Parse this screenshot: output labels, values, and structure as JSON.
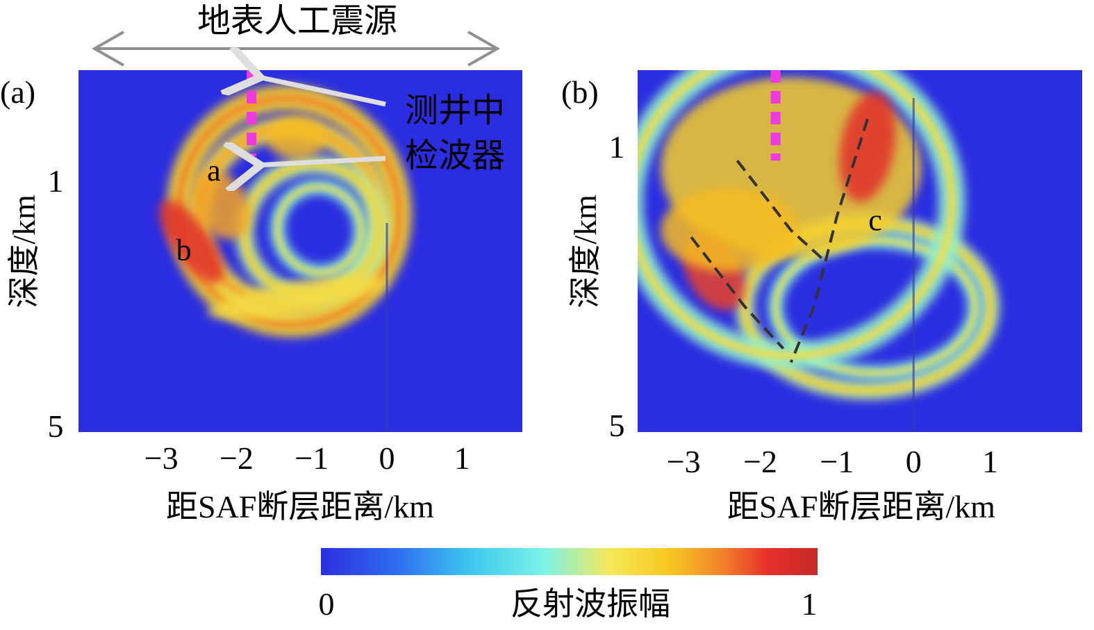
{
  "chart_data": [
    {
      "type": "heatmap",
      "panel_label": "(a)",
      "title": "",
      "xlabel": "距SAF断层距离/km",
      "ylabel": "深度/km",
      "xticks": [
        "−3",
        "−2",
        "−1",
        "0",
        "1"
      ],
      "xtick_values": [
        -3,
        -2,
        -1,
        0,
        1
      ],
      "yticks": [
        "1",
        "5"
      ],
      "ytick_values": [
        1,
        5
      ],
      "xlim": [
        -4.1,
        1.8
      ],
      "ylim": [
        -0.8,
        5.1
      ],
      "source_label": "地表人工震源",
      "receiver_label_line1": "测井中",
      "receiver_label_line2": "检波器",
      "receiver_x": -1.8,
      "receiver_depth_range": [
        -0.8,
        0.6
      ],
      "fault_line_x": 0,
      "annotations": [
        {
          "text": "a",
          "x": -2.3,
          "y": 1.0
        },
        {
          "text": "b",
          "x": -2.7,
          "y": 2.3
        }
      ],
      "arcs": [
        {
          "cx": -1.3,
          "cy": 1.5,
          "rx": 1.45,
          "ry": 1.85,
          "rot": -20,
          "level": 0.6,
          "width": 0.35
        },
        {
          "cx": -1.3,
          "cy": 1.6,
          "rx": 1.2,
          "ry": 1.45,
          "rot": -20,
          "level": 0.55,
          "width": 0.3
        },
        {
          "cx": -1.0,
          "cy": 1.8,
          "rx": 0.9,
          "ry": 1.05,
          "rot": -25,
          "level": 0.45,
          "width": 0.25
        },
        {
          "cx": -0.9,
          "cy": 1.8,
          "rx": 0.55,
          "ry": 0.7,
          "rot": -25,
          "level": 0.4,
          "width": 0.2
        }
      ],
      "blobs": [
        {
          "x": -2.6,
          "y": 2.0,
          "rx": 0.25,
          "ry": 0.8,
          "rot": -35,
          "level": 0.9
        },
        {
          "x": -2.2,
          "y": 1.4,
          "rx": 0.35,
          "ry": 0.6,
          "rot": -30,
          "level": 0.7
        },
        {
          "x": -1.2,
          "y": 0.3,
          "rx": 0.4,
          "ry": 0.35,
          "rot": 0,
          "level": 0.65
        },
        {
          "x": -1.2,
          "y": 2.9,
          "rx": 1.2,
          "ry": 0.25,
          "rot": -10,
          "level": 0.55
        }
      ]
    },
    {
      "type": "heatmap",
      "panel_label": "(b)",
      "title": "",
      "xlabel": "距SAF断层距离/km",
      "ylabel": "深度/km",
      "xticks": [
        "−3",
        "−2",
        "−1",
        "0",
        "1"
      ],
      "xtick_values": [
        -3,
        -2,
        -1,
        0,
        1
      ],
      "yticks": [
        "1",
        "5"
      ],
      "yticks_values_note": "",
      "ytick_values": [
        1,
        5
      ],
      "xlim": [
        -3.6,
        2.2
      ],
      "ylim": [
        -0.1,
        5.1
      ],
      "receiver_x": -1.8,
      "receiver_depth_range": [
        -0.1,
        1.2
      ],
      "fault_line_x": 0,
      "annotations": [
        {
          "text": "c",
          "x": -0.5,
          "y": 2.2
        }
      ],
      "dashed_lines": [
        {
          "x": [
            -2.3,
            -1.6,
            -1.2
          ],
          "y": [
            1.2,
            2.2,
            2.6
          ]
        },
        {
          "x": [
            -2.9,
            -2.2,
            -1.7
          ],
          "y": [
            2.3,
            3.3,
            3.9
          ]
        },
        {
          "x": [
            -0.6,
            -1.0,
            -1.3,
            -1.6
          ],
          "y": [
            0.6,
            2.0,
            3.3,
            4.1
          ]
        }
      ],
      "blobs": [
        {
          "x": -1.6,
          "y": 1.3,
          "rx": 1.7,
          "ry": 1.3,
          "rot": 0,
          "level": 0.6
        },
        {
          "x": -0.6,
          "y": 1.0,
          "rx": 0.35,
          "ry": 0.8,
          "rot": 10,
          "level": 0.9
        },
        {
          "x": -2.6,
          "y": 2.8,
          "rx": 0.35,
          "ry": 0.6,
          "rot": -30,
          "level": 0.85
        },
        {
          "x": -2.4,
          "y": 2.2,
          "rx": 0.9,
          "ry": 0.6,
          "rot": 0,
          "level": 0.65
        }
      ],
      "arcs": [
        {
          "cx": -0.6,
          "cy": 3.3,
          "rx": 1.6,
          "ry": 1.2,
          "rot": 0,
          "level": 0.45,
          "width": 0.25
        },
        {
          "cx": -0.5,
          "cy": 3.3,
          "rx": 1.3,
          "ry": 0.95,
          "rot": 0,
          "level": 0.4,
          "width": 0.2
        },
        {
          "cx": -1.6,
          "cy": 1.8,
          "rx": 2.1,
          "ry": 2.2,
          "rot": 0,
          "level": 0.4,
          "width": 0.35
        }
      ]
    }
  ],
  "colorbar": {
    "label": "反射波振幅",
    "min_label": "0",
    "max_label": "1",
    "range": [
      0,
      1
    ]
  },
  "colors": {
    "background_low": "#2b2ee0",
    "stops": [
      "#2b2ee0",
      "#2f6cf0",
      "#3cc8f0",
      "#7df2e6",
      "#f4e85a",
      "#f7c820",
      "#f08a2a",
      "#e8302a",
      "#c42a2a"
    ],
    "receiver": "#ee3adf",
    "arrow": "#dedede",
    "dashed": "#333333"
  }
}
